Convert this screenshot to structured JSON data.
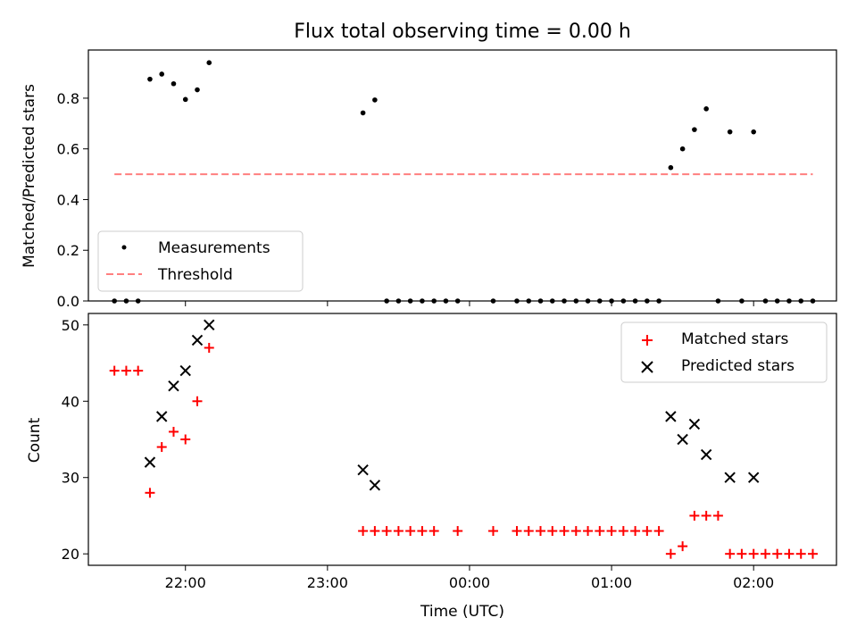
{
  "title": "Flux total observing time = 0.00 h",
  "chart_data": [
    {
      "type": "scatter",
      "ylabel": "Matched/Predicted stars",
      "xlabel": "",
      "ylim": [
        0,
        0.99
      ],
      "yticks": [
        0.0,
        0.2,
        0.4,
        0.6,
        0.8
      ],
      "ytick_labels": [
        "0.0",
        "0.2",
        "0.4",
        "0.6",
        "0.8"
      ],
      "legend_position": "lower-left",
      "series": [
        {
          "name": "Measurements",
          "marker": "dot",
          "color": "#000000",
          "points": [
            [
              "21:30",
              0.0
            ],
            [
              "21:35",
              0.0
            ],
            [
              "21:40",
              0.0
            ],
            [
              "21:45",
              0.875
            ],
            [
              "21:50",
              0.895
            ],
            [
              "21:55",
              0.857
            ],
            [
              "22:00",
              0.795
            ],
            [
              "22:05",
              0.833
            ],
            [
              "22:10",
              0.94
            ],
            [
              "23:15",
              0.742
            ],
            [
              "23:20",
              0.793
            ],
            [
              "23:25",
              0.0
            ],
            [
              "23:30",
              0.0
            ],
            [
              "23:35",
              0.0
            ],
            [
              "23:40",
              0.0
            ],
            [
              "23:45",
              0.0
            ],
            [
              "23:50",
              0.0
            ],
            [
              "23:55",
              0.0
            ],
            [
              "00:10",
              0.0
            ],
            [
              "00:20",
              0.0
            ],
            [
              "00:25",
              0.0
            ],
            [
              "00:30",
              0.0
            ],
            [
              "00:35",
              0.0
            ],
            [
              "00:40",
              0.0
            ],
            [
              "00:45",
              0.0
            ],
            [
              "00:50",
              0.0
            ],
            [
              "00:55",
              0.0
            ],
            [
              "01:00",
              0.0
            ],
            [
              "01:05",
              0.0
            ],
            [
              "01:10",
              0.0
            ],
            [
              "01:15",
              0.0
            ],
            [
              "01:20",
              0.0
            ],
            [
              "01:25",
              0.526
            ],
            [
              "01:30",
              0.6
            ],
            [
              "01:35",
              0.676
            ],
            [
              "01:40",
              0.758
            ],
            [
              "01:45",
              0.0
            ],
            [
              "01:50",
              0.667
            ],
            [
              "01:55",
              0.0
            ],
            [
              "02:00",
              0.667
            ],
            [
              "02:05",
              0.0
            ],
            [
              "02:10",
              0.0
            ],
            [
              "02:15",
              0.0
            ],
            [
              "02:20",
              0.0
            ],
            [
              "02:25",
              0.0
            ]
          ]
        },
        {
          "name": "Threshold",
          "type": "line",
          "style": "dashed",
          "color": "#ff7f7f",
          "points": [
            [
              "21:30",
              0.5
            ],
            [
              "02:25",
              0.5
            ]
          ]
        }
      ]
    },
    {
      "type": "scatter",
      "ylabel": "Count",
      "xlabel": "Time (UTC)",
      "ylim": [
        18.5,
        51.5
      ],
      "yticks": [
        20,
        30,
        40,
        50
      ],
      "ytick_labels": [
        "20",
        "30",
        "40",
        "50"
      ],
      "xticks": [
        "22:00",
        "23:00",
        "00:00",
        "01:00",
        "02:00"
      ],
      "legend_position": "upper-right",
      "series": [
        {
          "name": "Matched stars",
          "marker": "plus",
          "color": "#ff0000",
          "points": [
            [
              "21:30",
              44
            ],
            [
              "21:35",
              44
            ],
            [
              "21:40",
              44
            ],
            [
              "21:45",
              28
            ],
            [
              "21:50",
              34
            ],
            [
              "21:55",
              36
            ],
            [
              "22:00",
              35
            ],
            [
              "22:05",
              40
            ],
            [
              "22:10",
              47
            ],
            [
              "23:15",
              23
            ],
            [
              "23:20",
              23
            ],
            [
              "23:25",
              23
            ],
            [
              "23:30",
              23
            ],
            [
              "23:35",
              23
            ],
            [
              "23:40",
              23
            ],
            [
              "23:45",
              23
            ],
            [
              "23:55",
              23
            ],
            [
              "00:10",
              23
            ],
            [
              "00:20",
              23
            ],
            [
              "00:25",
              23
            ],
            [
              "00:30",
              23
            ],
            [
              "00:35",
              23
            ],
            [
              "00:40",
              23
            ],
            [
              "00:45",
              23
            ],
            [
              "00:50",
              23
            ],
            [
              "00:55",
              23
            ],
            [
              "01:00",
              23
            ],
            [
              "01:05",
              23
            ],
            [
              "01:10",
              23
            ],
            [
              "01:15",
              23
            ],
            [
              "01:20",
              23
            ],
            [
              "01:25",
              20
            ],
            [
              "01:30",
              21
            ],
            [
              "01:35",
              25
            ],
            [
              "01:40",
              25
            ],
            [
              "01:45",
              25
            ],
            [
              "01:50",
              20
            ],
            [
              "01:55",
              20
            ],
            [
              "02:00",
              20
            ],
            [
              "02:05",
              20
            ],
            [
              "02:10",
              20
            ],
            [
              "02:15",
              20
            ],
            [
              "02:20",
              20
            ],
            [
              "02:25",
              20
            ]
          ]
        },
        {
          "name": "Predicted stars",
          "marker": "x",
          "color": "#000000",
          "points": [
            [
              "21:45",
              32
            ],
            [
              "21:50",
              38
            ],
            [
              "21:55",
              42
            ],
            [
              "22:00",
              44
            ],
            [
              "22:05",
              48
            ],
            [
              "22:10",
              50
            ],
            [
              "23:15",
              31
            ],
            [
              "23:20",
              29
            ],
            [
              "01:25",
              38
            ],
            [
              "01:30",
              35
            ],
            [
              "01:35",
              37
            ],
            [
              "01:40",
              33
            ],
            [
              "01:50",
              30
            ],
            [
              "02:00",
              30
            ]
          ]
        }
      ]
    }
  ]
}
